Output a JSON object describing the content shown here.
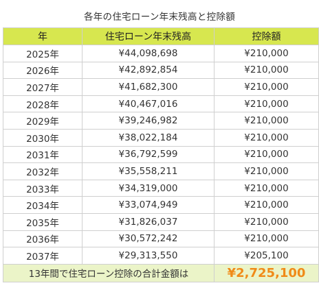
{
  "title": "各年の住宅ローン年末残高と控除額",
  "columns": [
    "年",
    "住宅ローン年末残高",
    "控除額"
  ],
  "rows": [
    {
      "year": "2025年",
      "balance": "¥44,098,698",
      "deduction": "¥210,000"
    },
    {
      "year": "2026年",
      "balance": "¥42,892,854",
      "deduction": "¥210,000"
    },
    {
      "year": "2027年",
      "balance": "¥41,682,300",
      "deduction": "¥210,000"
    },
    {
      "year": "2028年",
      "balance": "¥40,467,016",
      "deduction": "¥210,000"
    },
    {
      "year": "2029年",
      "balance": "¥39,246,982",
      "deduction": "¥210,000"
    },
    {
      "year": "2030年",
      "balance": "¥38,022,184",
      "deduction": "¥210,000"
    },
    {
      "year": "2031年",
      "balance": "¥36,792,599",
      "deduction": "¥210,000"
    },
    {
      "year": "2032年",
      "balance": "¥35,558,211",
      "deduction": "¥210,000"
    },
    {
      "year": "2033年",
      "balance": "¥34,319,000",
      "deduction": "¥210,000"
    },
    {
      "year": "2034年",
      "balance": "¥33,074,949",
      "deduction": "¥210,000"
    },
    {
      "year": "2035年",
      "balance": "¥31,826,037",
      "deduction": "¥210,000"
    },
    {
      "year": "2036年",
      "balance": "¥30,572,242",
      "deduction": "¥210,000"
    },
    {
      "year": "2037年",
      "balance": "¥29,313,550",
      "deduction": "¥205,100"
    }
  ],
  "summary": {
    "label": "13年間で住宅ローン控除の合計金額は",
    "value": "¥2,725,100"
  },
  "colors": {
    "header_bg": "#d7e74f",
    "summary_bg": "#ebf4c8",
    "total_value": "#f08b18",
    "border": "#cfcfcf"
  }
}
